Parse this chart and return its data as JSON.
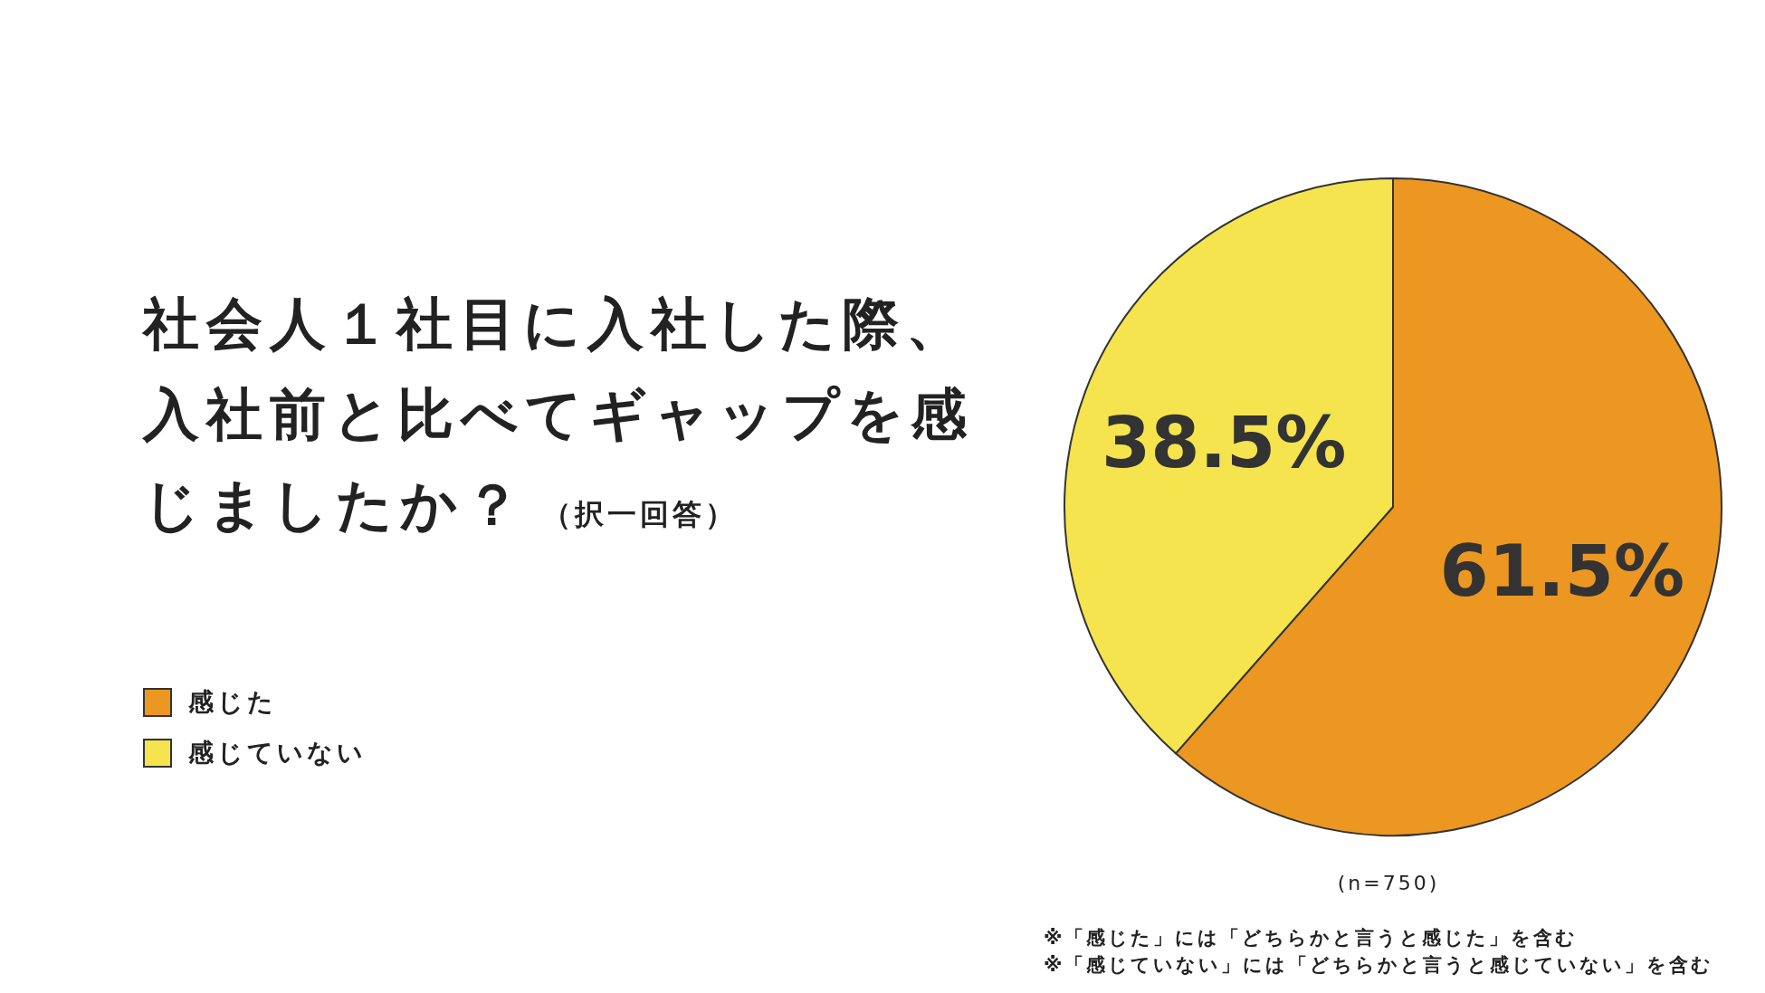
{
  "chart_data": {
    "type": "pie",
    "title": "社会人１社目に入社した際、入社前と比べてギャップを感じましたか？",
    "subtitle": "（択一回答）",
    "categories": [
      "感じた",
      "感じていない"
    ],
    "values": [
      61.5,
      38.5
    ],
    "colors": [
      "#ec9722",
      "#f5e44e"
    ],
    "value_labels": [
      "61.5%",
      "38.5%"
    ],
    "legend": "left",
    "annotations": [
      "(n=750)",
      "※「感じた」には「どちらかと言うと感じた」を含む",
      "※「感じていない」には「どちらかと言うと感じていない」を含む"
    ]
  }
}
